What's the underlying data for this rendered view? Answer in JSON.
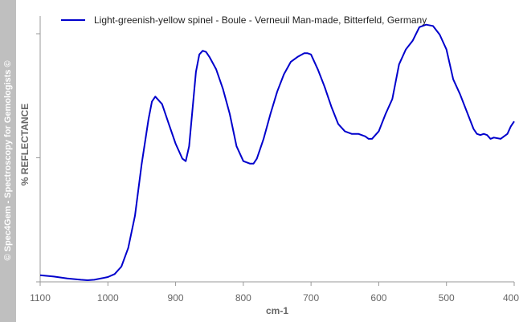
{
  "watermark": "© Spec4Gem - Spectroscopy for Gemologists ©",
  "chart_data": {
    "type": "line",
    "title": "",
    "xlabel": "cm-1",
    "ylabel": "% REFLECTANCE",
    "xlim": [
      1100,
      400
    ],
    "x_reversed": true,
    "ylim": [
      0,
      100
    ],
    "y_tick_labels": false,
    "grid": false,
    "legend_position": "top",
    "x_ticks": [
      1100,
      1000,
      900,
      800,
      700,
      600,
      500,
      400
    ],
    "x_tick_labels": [
      "1100",
      "1000",
      "900",
      "800",
      "700",
      "600",
      "500",
      "400"
    ],
    "y_ticks": [
      0,
      50,
      100
    ],
    "series": [
      {
        "name": "Light-greenish-yellow spinel - Boule - Verneuil Man-made, Bitterfeld, Germany",
        "color": "#0000cc",
        "x": [
          1100,
          1080,
          1060,
          1040,
          1030,
          1020,
          1000,
          990,
          980,
          970,
          960,
          950,
          940,
          935,
          930,
          920,
          910,
          900,
          890,
          885,
          880,
          870,
          865,
          860,
          855,
          850,
          840,
          830,
          820,
          810,
          800,
          790,
          785,
          780,
          770,
          760,
          750,
          740,
          730,
          720,
          710,
          705,
          700,
          690,
          680,
          670,
          660,
          650,
          640,
          630,
          620,
          615,
          610,
          600,
          590,
          580,
          570,
          560,
          550,
          540,
          530,
          520,
          510,
          505,
          500,
          490,
          480,
          470,
          460,
          455,
          450,
          445,
          440,
          435,
          430,
          420,
          410,
          405,
          400
        ],
        "y": [
          2,
          1.5,
          0.7,
          0.2,
          0,
          0.2,
          1.3,
          2.5,
          5.5,
          13,
          26,
          47,
          65,
          72,
          74,
          71,
          63,
          55,
          49,
          48,
          54,
          84,
          91,
          92.5,
          92,
          90,
          85,
          77,
          67,
          54,
          48,
          47,
          47,
          49,
          57,
          67,
          76,
          83,
          88,
          90,
          91.5,
          91.5,
          91,
          85,
          78,
          70,
          63,
          60,
          59,
          59,
          58,
          57,
          57,
          60,
          67,
          73,
          87,
          93,
          96.5,
          102,
          103,
          102.5,
          99,
          96,
          93,
          81,
          75,
          68,
          61,
          59,
          58.5,
          59,
          58.5,
          57,
          57.5,
          57,
          59,
          62,
          64
        ]
      }
    ]
  }
}
